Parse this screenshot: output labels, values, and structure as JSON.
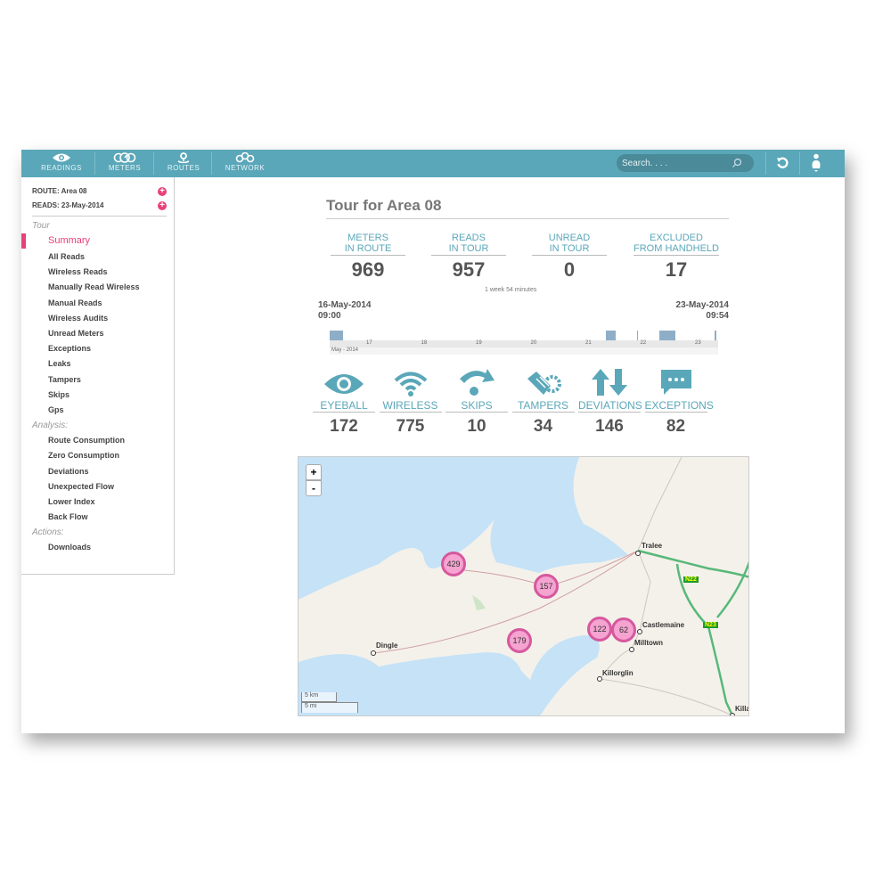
{
  "nav": {
    "items": [
      {
        "label": "READINGS",
        "icon": "eye-icon"
      },
      {
        "label": "METERS",
        "icon": "meters-icon"
      },
      {
        "label": "ROUTES",
        "icon": "route-pin-icon"
      },
      {
        "label": "NETWORK",
        "icon": "network-icon"
      }
    ],
    "search_placeholder": "Search. . . .",
    "accent": "#5aa7b9"
  },
  "sidebar": {
    "route": "ROUTE: Area 08",
    "reads": "READS: 23-May-2014",
    "sections": [
      {
        "title": "Tour",
        "items": [
          "Summary",
          "All Reads",
          "Wireless Reads",
          "Manually Read Wireless",
          "Manual Reads",
          "Wireless Audits",
          "Unread Meters",
          "Exceptions",
          "Leaks",
          "Tampers",
          "Skips",
          "Gps"
        ]
      },
      {
        "title": "Analysis:",
        "items": [
          "Route Consumption",
          "Zero Consumption",
          "Deviations",
          "Unexpected Flow",
          "Lower Index",
          "Back Flow"
        ]
      },
      {
        "title": "Actions:",
        "items": [
          "Downloads"
        ]
      }
    ],
    "active": "Summary",
    "active_color": "#e8407a"
  },
  "main": {
    "title": "Tour for Area 08",
    "kpis": [
      {
        "l1": "METERS",
        "l2": "IN ROUTE",
        "v": "969"
      },
      {
        "l1": "READS",
        "l2": "IN TOUR",
        "v": "957"
      },
      {
        "l1": "UNREAD",
        "l2": "IN TOUR",
        "v": "0"
      },
      {
        "l1": "EXCLUDED",
        "l2": "FROM HANDHELD",
        "v": "17"
      }
    ],
    "duration": "1 week 54 minutes",
    "start_date": "16-May-2014",
    "start_time": "09:00",
    "end_date": "23-May-2014",
    "end_time": "09:54",
    "timeline": {
      "ticks": [
        "17",
        "18",
        "19",
        "20",
        "21",
        "22",
        "23"
      ],
      "month": "May - 2014"
    },
    "stats": [
      {
        "label": "EYEBALL",
        "v": "172",
        "icon": "eye-icon"
      },
      {
        "label": "WIRELESS",
        "v": "775",
        "icon": "wifi-icon"
      },
      {
        "label": "SKIPS",
        "v": "10",
        "icon": "skip-arrow-icon"
      },
      {
        "label": "TAMPERS",
        "v": "34",
        "icon": "tamper-icon"
      },
      {
        "label": "DEVIATIONS",
        "v": "146",
        "icon": "up-down-arrows-icon"
      },
      {
        "label": "EXCEPTIONS",
        "v": "82",
        "icon": "speech-bubble-icon"
      }
    ],
    "map": {
      "zoom_in": "+",
      "zoom_out": "-",
      "clusters": [
        "429",
        "157",
        "179",
        "122",
        "62"
      ],
      "towns": [
        "Tralee",
        "Dingle",
        "Castlemaine",
        "Milltown",
        "Killorglin",
        "Killa"
      ],
      "roads": [
        "N22",
        "N23"
      ],
      "scale_km": "5 km",
      "scale_mi": "5 mi",
      "cluster_color": "#f5a3d0"
    }
  }
}
